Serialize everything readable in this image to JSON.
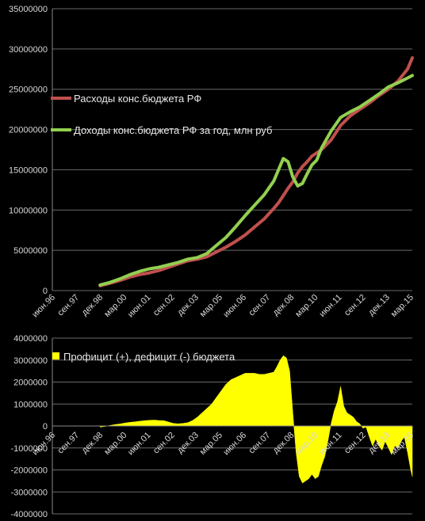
{
  "colors": {
    "background": "#000000",
    "grid": "#6a6a6a",
    "axis": "#888888",
    "text": "#d8d8d8",
    "expenses": "#c0504d",
    "revenues": "#92d050",
    "balance": "#ffff00"
  },
  "chart_data": [
    {
      "type": "line",
      "title": "",
      "xlabel": "",
      "ylabel": "",
      "x_ticks": [
        "июн.96",
        "сен.97",
        "дек.98",
        "мар.00",
        "июн.01",
        "сен.02",
        "дек.03",
        "мар.05",
        "июн.06",
        "сен.07",
        "дек.08",
        "мар.10",
        "июн.11",
        "сен.12",
        "дек.13",
        "мар.15"
      ],
      "x_range": [
        "1996-06",
        "1996-06"
      ],
      "x_range_note": "",
      "ylim": [
        0,
        35000000
      ],
      "y_ticks": [
        0,
        5000000,
        10000000,
        15000000,
        20000000,
        25000000,
        30000000,
        35000000
      ],
      "y_tick_labels": [
        "0",
        "5000000",
        "10000000",
        "15000000",
        "20000000",
        "25000000",
        "30000000",
        "35000000"
      ],
      "grid": true,
      "legend_position": "left",
      "series": [
        {
          "name": "Расходы конс.бюджета РФ",
          "color": "#c0504d",
          "x": [
            "1998-12",
            "1999-06",
            "2000-01",
            "2000-07",
            "2001-01",
            "2001-07",
            "2002-01",
            "2002-07",
            "2003-01",
            "2003-07",
            "2004-01",
            "2004-07",
            "2005-01",
            "2005-07",
            "2006-01",
            "2006-07",
            "2007-01",
            "2007-07",
            "2008-01",
            "2008-04",
            "2008-07",
            "2008-10",
            "2009-01",
            "2009-04",
            "2009-07",
            "2009-10",
            "2010-01",
            "2010-07",
            "2011-01",
            "2011-07",
            "2012-01",
            "2012-07",
            "2013-01",
            "2013-07",
            "2014-01",
            "2014-07",
            "2015-01",
            "2015-04"
          ],
          "values": [
            600000,
            900000,
            1300000,
            1700000,
            2000000,
            2200000,
            2500000,
            2900000,
            3300000,
            3700000,
            3900000,
            4200000,
            4800000,
            5400000,
            6100000,
            6900000,
            7900000,
            8900000,
            10200000,
            10900000,
            11800000,
            12700000,
            13500000,
            14600000,
            15400000,
            16000000,
            16700000,
            17500000,
            18700000,
            20500000,
            21700000,
            22500000,
            23300000,
            24200000,
            25000000,
            26000000,
            27500000,
            28900000
          ]
        },
        {
          "name": "Доходы конс.бюджета РФ за год, млн руб",
          "color": "#92d050",
          "x": [
            "1998-12",
            "1999-06",
            "2000-01",
            "2000-07",
            "2001-01",
            "2001-07",
            "2002-01",
            "2002-07",
            "2003-01",
            "2003-07",
            "2004-01",
            "2004-07",
            "2005-01",
            "2005-07",
            "2006-01",
            "2006-07",
            "2007-01",
            "2007-07",
            "2008-01",
            "2008-07",
            "2008-10",
            "2009-01",
            "2009-04",
            "2009-07",
            "2009-10",
            "2010-01",
            "2010-04",
            "2010-07",
            "2011-01",
            "2011-07",
            "2012-01",
            "2012-07",
            "2013-01",
            "2013-07",
            "2014-01",
            "2014-07",
            "2015-01",
            "2015-04"
          ],
          "values": [
            700000,
            1000000,
            1500000,
            2000000,
            2400000,
            2700000,
            2900000,
            3200000,
            3500000,
            3900000,
            4100000,
            4600000,
            5600000,
            6600000,
            7900000,
            9300000,
            10600000,
            11900000,
            13600000,
            16400000,
            16000000,
            14100000,
            13000000,
            13300000,
            14500000,
            15600000,
            16200000,
            17700000,
            19800000,
            21500000,
            22200000,
            22800000,
            23600000,
            24400000,
            25300000,
            25800000,
            26400000,
            26700000
          ]
        }
      ]
    },
    {
      "type": "area",
      "title": "",
      "xlabel": "",
      "ylabel": "",
      "x_ticks": [
        "июн.96",
        "сен.97",
        "дек.98",
        "мар.00",
        "июн.01",
        "сен.02",
        "дек.03",
        "мар.05",
        "июн.06",
        "сен.07",
        "дек.08",
        "мар.10",
        "июн.11",
        "сен.12",
        "дек.13",
        "мар.15"
      ],
      "ylim": [
        -4000000,
        4000000
      ],
      "y_ticks": [
        -4000000,
        -3000000,
        -2000000,
        -1000000,
        0,
        1000000,
        2000000,
        3000000,
        4000000
      ],
      "y_tick_labels": [
        "-4000000",
        "-3000000",
        "-2000000",
        "-1000000",
        "0",
        "1000000",
        "2000000",
        "3000000",
        "4000000"
      ],
      "grid": true,
      "legend_position": "top-left",
      "series": [
        {
          "name": "Профицит (+), дефицит (-) бюджета",
          "color": "#ffff00",
          "x": [
            "1998-12",
            "1999-03",
            "1999-06",
            "1999-09",
            "2000-01",
            "2000-04",
            "2000-07",
            "2000-10",
            "2001-01",
            "2001-04",
            "2001-07",
            "2001-10",
            "2002-01",
            "2002-04",
            "2002-07",
            "2002-10",
            "2003-01",
            "2003-04",
            "2003-07",
            "2003-10",
            "2004-01",
            "2004-04",
            "2004-07",
            "2004-10",
            "2005-01",
            "2005-04",
            "2005-07",
            "2005-10",
            "2006-01",
            "2006-04",
            "2006-07",
            "2006-10",
            "2007-01",
            "2007-04",
            "2007-07",
            "2007-10",
            "2008-01",
            "2008-03",
            "2008-05",
            "2008-07",
            "2008-09",
            "2008-11",
            "2009-01",
            "2009-03",
            "2009-05",
            "2009-07",
            "2009-09",
            "2009-11",
            "2010-01",
            "2010-03",
            "2010-05",
            "2010-07",
            "2010-09",
            "2010-11",
            "2011-01",
            "2011-03",
            "2011-05",
            "2011-07",
            "2011-09",
            "2011-11",
            "2012-01",
            "2012-03",
            "2012-05",
            "2012-07",
            "2012-09",
            "2012-11",
            "2013-01",
            "2013-03",
            "2013-05",
            "2013-07",
            "2013-09",
            "2013-11",
            "2014-01",
            "2014-03",
            "2014-05",
            "2014-07",
            "2014-09",
            "2014-11",
            "2015-01",
            "2015-03",
            "2015-04"
          ],
          "values": [
            -50000,
            -20000,
            20000,
            60000,
            100000,
            140000,
            170000,
            190000,
            220000,
            240000,
            260000,
            270000,
            250000,
            240000,
            180000,
            120000,
            100000,
            120000,
            150000,
            250000,
            400000,
            600000,
            800000,
            1000000,
            1300000,
            1600000,
            1900000,
            2100000,
            2200000,
            2300000,
            2400000,
            2400000,
            2400000,
            2350000,
            2350000,
            2400000,
            2450000,
            2700000,
            3000000,
            3200000,
            3100000,
            2500000,
            600000,
            -1200000,
            -2300000,
            -2600000,
            -2500000,
            -2400000,
            -2200000,
            -2400000,
            -2300000,
            -1800000,
            -1400000,
            -700000,
            100000,
            700000,
            1100000,
            1800000,
            900000,
            600000,
            500000,
            400000,
            200000,
            100000,
            -100000,
            -50000,
            -500000,
            -900000,
            -600000,
            -900000,
            -1100000,
            -700000,
            -1000000,
            -1300000,
            -900000,
            -1000000,
            -700000,
            -500000,
            -1200000,
            -2000000,
            -2300000
          ]
        }
      ]
    }
  ]
}
